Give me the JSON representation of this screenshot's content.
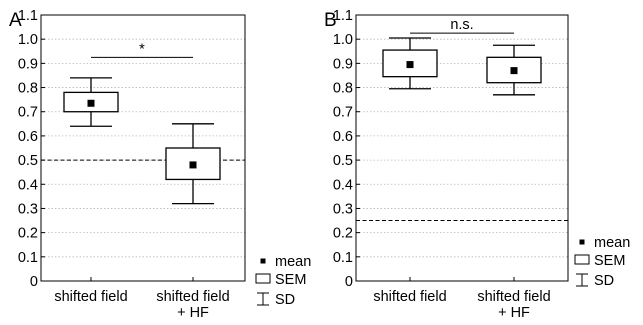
{
  "chart_data": [
    {
      "type": "box",
      "panel_label": "A",
      "categories": [
        "shifted field",
        "shifted field\n+ HF"
      ],
      "boxes": [
        {
          "mean": 0.735,
          "sem": [
            0.7,
            0.78
          ],
          "sd": [
            0.64,
            0.84
          ]
        },
        {
          "mean": 0.48,
          "sem": [
            0.42,
            0.55
          ],
          "sd": [
            0.32,
            0.65
          ]
        }
      ],
      "ylim": [
        0,
        1.1
      ],
      "yticks": [
        "0",
        "0.1",
        "0.2",
        "0.3",
        "0.4",
        "0.5",
        "0.6",
        "0.7",
        "0.8",
        "0.9",
        "1.0",
        "1.1"
      ],
      "reference_line": 0.5,
      "significance": {
        "text": "*",
        "y": 0.925
      },
      "grid": true,
      "legend": {
        "position": "right",
        "mean": "mean",
        "sem": "SEM",
        "sd": "SD"
      }
    },
    {
      "type": "box",
      "panel_label": "B",
      "categories": [
        "shifted field",
        "shifted field\n+ HF"
      ],
      "boxes": [
        {
          "mean": 0.895,
          "sem": [
            0.845,
            0.955
          ],
          "sd": [
            0.795,
            1.005
          ]
        },
        {
          "mean": 0.87,
          "sem": [
            0.82,
            0.925
          ],
          "sd": [
            0.77,
            0.975
          ]
        }
      ],
      "ylim": [
        0,
        1.1
      ],
      "yticks": [
        "0",
        "0.1",
        "0.2",
        "0.3",
        "0.4",
        "0.5",
        "0.6",
        "0.7",
        "0.8",
        "0.9",
        "1.0",
        "1.1"
      ],
      "reference_line": 0.25,
      "significance": {
        "text": "n.s.",
        "y": 1.025
      },
      "grid": true,
      "legend": {
        "position": "right",
        "mean": "mean",
        "sem": "SEM",
        "sd": "SD"
      }
    }
  ]
}
